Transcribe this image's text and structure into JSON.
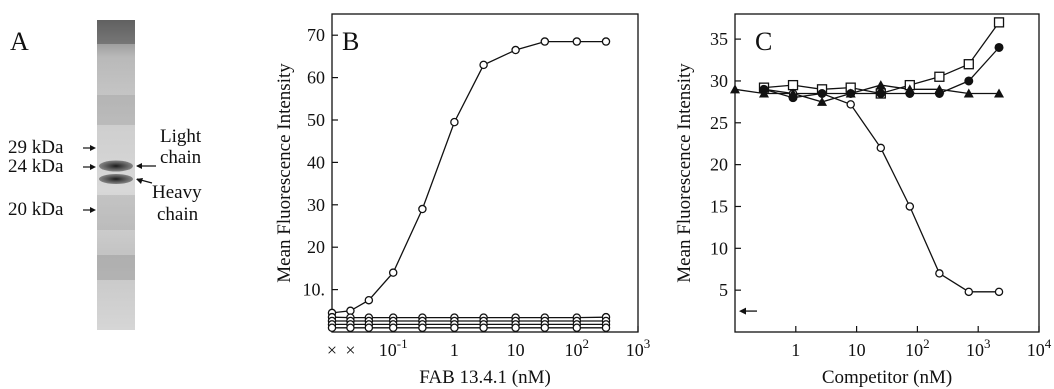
{
  "panel_a": {
    "letter": "A",
    "markers": [
      "29 kDa",
      "24 kDa",
      "20 kDa"
    ],
    "band_labels": {
      "light_1": "Light",
      "light_2": "chain",
      "heavy_1": "Heavy",
      "heavy_2": "chain"
    }
  },
  "chart_data": [
    {
      "type": "line",
      "panel": "B",
      "title": "",
      "xlabel": "FAB 13.4.1 (nM)",
      "ylabel": "Mean Fluorescence Intensity",
      "x_scale": "log",
      "xlim": [
        0.01,
        1000
      ],
      "ylim": [
        0,
        75
      ],
      "grid": false,
      "legend": "none",
      "x_ticks": [
        {
          "label": "×",
          "value": 0.01
        },
        {
          "label": "×",
          "value": 0.02
        },
        {
          "label": "10",
          "sup": "-1",
          "value": 0.1
        },
        {
          "label": "1",
          "value": 1
        },
        {
          "label": "10",
          "value": 10
        },
        {
          "label": "10",
          "sup": "2",
          "value": 100
        },
        {
          "label": "10",
          "sup": "3",
          "value": 1000
        }
      ],
      "y_ticks": [
        {
          "label": "10.",
          "value": 10
        },
        {
          "label": "20",
          "value": 20
        },
        {
          "label": "30",
          "value": 30
        },
        {
          "label": "40",
          "value": 40
        },
        {
          "label": "50",
          "value": 50
        },
        {
          "label": "60",
          "value": 60
        },
        {
          "label": "70",
          "value": 70
        }
      ],
      "x": [
        0.01,
        0.02,
        0.04,
        0.1,
        0.3,
        1,
        3,
        10,
        30,
        100,
        300
      ],
      "series": [
        {
          "marker": "open-circle",
          "values": [
            4.5,
            5,
            7.5,
            14,
            29,
            49.5,
            63,
            66.5,
            68.5,
            68.5,
            68.5
          ]
        },
        {
          "marker": "open-circle",
          "values": [
            3.5,
            3.4,
            3.4,
            3.4,
            3.4,
            3.4,
            3.4,
            3.4,
            3.4,
            3.4,
            3.5
          ]
        },
        {
          "marker": "open-circle",
          "values": [
            2.6,
            2.6,
            2.6,
            2.6,
            2.6,
            2.6,
            2.6,
            2.6,
            2.6,
            2.6,
            2.6
          ]
        },
        {
          "marker": "open-circle",
          "values": [
            1.8,
            1.8,
            1.8,
            1.8,
            1.8,
            1.8,
            1.8,
            1.8,
            1.8,
            1.8,
            1.8
          ]
        },
        {
          "marker": "open-circle",
          "values": [
            1.0,
            1.0,
            1.0,
            1.0,
            1.0,
            1.0,
            1.0,
            1.0,
            1.0,
            1.0,
            1.0
          ]
        }
      ]
    },
    {
      "type": "line",
      "panel": "C",
      "title": "",
      "xlabel": "Competitor (nM)",
      "ylabel": "Mean Fluorescence Intensity",
      "x_scale": "log",
      "xlim": [
        0.1,
        10000
      ],
      "ylim": [
        0,
        38
      ],
      "grid": false,
      "legend": "none",
      "x_ticks": [
        {
          "label": "1",
          "value": 1
        },
        {
          "label": "10",
          "value": 10
        },
        {
          "label": "10",
          "sup": "2",
          "value": 100
        },
        {
          "label": "10",
          "sup": "3",
          "value": 1000
        },
        {
          "label": "10",
          "sup": "4",
          "value": 10000
        }
      ],
      "y_ticks": [
        {
          "label": "5",
          "value": 5
        },
        {
          "label": "10",
          "value": 10
        },
        {
          "label": "15",
          "value": 15
        },
        {
          "label": "20",
          "value": 20
        },
        {
          "label": "25",
          "value": 25
        },
        {
          "label": "30",
          "value": 30
        },
        {
          "label": "35",
          "value": 35
        }
      ],
      "annotation": {
        "type": "arrow-left",
        "y": 2.5
      },
      "x": [
        0.3,
        0.9,
        2.7,
        8,
        25,
        75,
        230,
        700,
        2200
      ],
      "series": [
        {
          "marker": "open-circle",
          "values": [
            29,
            28.5,
            28.5,
            27.2,
            22,
            15,
            7,
            4.8,
            4.8
          ]
        },
        {
          "marker": "open-square",
          "values": [
            29.2,
            29.5,
            29,
            29.2,
            28.5,
            29.5,
            30.5,
            32,
            37
          ]
        },
        {
          "marker": "filled-circle",
          "values": [
            29,
            28,
            28.5,
            28.5,
            28.5,
            28.5,
            28.5,
            30,
            34
          ]
        },
        {
          "marker": "filled-triangle",
          "x": [
            0.1,
            0.3,
            0.9,
            2.7,
            8,
            25,
            75,
            230,
            700,
            2200
          ],
          "values": [
            29,
            28.5,
            28.5,
            27.5,
            28.5,
            29.5,
            29,
            29,
            28.5,
            28.5
          ]
        }
      ]
    }
  ]
}
